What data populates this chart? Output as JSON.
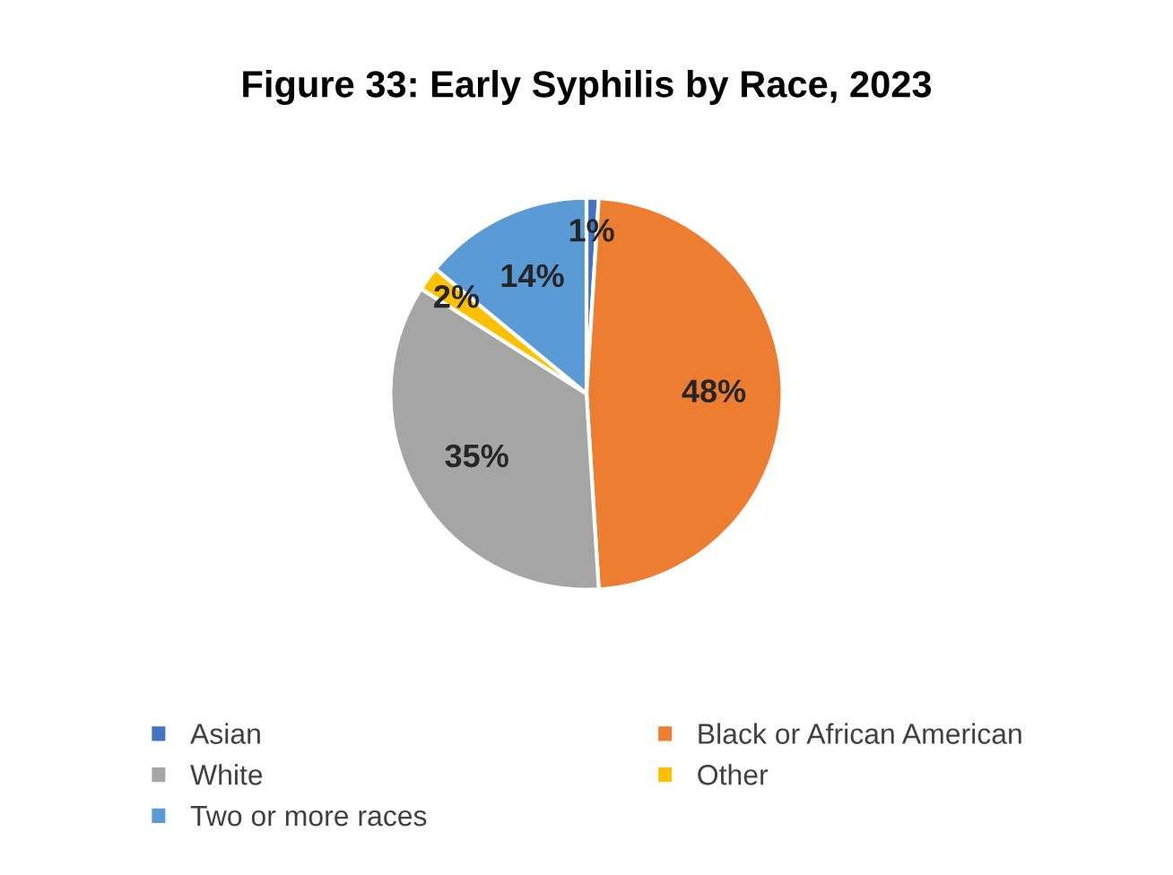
{
  "chart_data": {
    "type": "pie",
    "title": "Figure 33: Early Syphilis by Race, 2023",
    "categories": [
      "Asian",
      "Black or African American",
      "White",
      "Other",
      "Two or more races"
    ],
    "values": [
      1,
      48,
      35,
      2,
      14
    ],
    "colors": [
      "#4472c4",
      "#ed7d31",
      "#a5a5a5",
      "#ffc000",
      "#5b9bd5"
    ],
    "value_labels": [
      "1%",
      "48%",
      "35%",
      "2%",
      "14%"
    ],
    "legend": "bottom"
  }
}
